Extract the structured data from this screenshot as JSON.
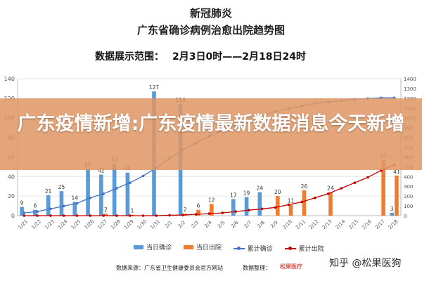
{
  "title_main": "新冠肺炎",
  "title_sub": "广东省确诊病例治愈出院趋势图",
  "range_label": "数据展示范围：",
  "range_value": "2月3日0时——2月18日24时",
  "overlay_text": "广东疫情新增:广东疫情最新数据消息今天新增",
  "colors": {
    "confirmed": "#5b9bd5",
    "discharged": "#ed7d31",
    "cum_confirmed": "#4472c4",
    "cum_discharged": "#c00000",
    "grid": "#e6e6e6",
    "axis_text": "#555555"
  },
  "legend": {
    "daily_confirmed": "当日确诊",
    "daily_discharged": "当日出院",
    "cum_confirmed": "累计确诊",
    "cum_discharged": "累计出院"
  },
  "footer": {
    "source": "数据来源：广东省卫生健康委员会官方网站",
    "compiler": "数据整理：",
    "logo": "松果医疗",
    "watermark": "知乎 @松果医狗"
  },
  "chart_data": {
    "type": "bar",
    "categories": [
      "1/21",
      "1/22",
      "1/23",
      "1/24",
      "1/25",
      "1/26",
      "1/27",
      "1/28",
      "1/29",
      "1/30",
      "1/31",
      "2/1",
      "2/2",
      "2/3",
      "2/4",
      "2/5",
      "2/6",
      "2/7",
      "2/8",
      "2/9",
      "2/10",
      "2/11",
      "2/12",
      "2/13",
      "2/14",
      "2/15",
      "2/16",
      "2/17",
      "2/18"
    ],
    "series": [
      {
        "name": "当日确诊",
        "kind": "bar",
        "values": [
          9,
          6,
          21,
          25,
          14,
          48,
          42,
          53,
          44,
          null,
          127,
          null,
          114,
          null,
          null,
          null,
          17,
          19,
          24,
          null,
          null,
          null,
          null,
          null,
          null,
          null,
          null,
          null,
          3
        ]
      },
      {
        "name": "当日出院",
        "kind": "bar",
        "values": [
          null,
          null,
          null,
          null,
          null,
          null,
          2,
          null,
          1,
          null,
          null,
          null,
          2,
          6,
          12,
          null,
          null,
          null,
          null,
          20,
          11,
          26,
          null,
          24,
          null,
          null,
          null,
          57,
          41
        ]
      },
      {
        "name": "累计确诊",
        "kind": "line"
      },
      {
        "name": "累计出院",
        "kind": "line"
      }
    ],
    "y_left": {
      "range": [
        0,
        140
      ],
      "ticks": [
        0,
        20,
        40,
        60,
        80,
        100,
        120,
        140
      ]
    },
    "y_right": {
      "ticks": [
        1400,
        1300,
        1200,
        1100,
        1000,
        900,
        800,
        700,
        600,
        500,
        400,
        300,
        200,
        100,
        0
      ]
    },
    "cum_confirmed_shape": [
      0.02,
      0.03,
      0.05,
      0.07,
      0.09,
      0.13,
      0.16,
      0.2,
      0.24,
      0.29,
      0.35,
      0.42,
      0.48,
      0.53,
      0.58,
      0.62,
      0.66,
      0.7,
      0.73,
      0.76,
      0.78,
      0.8,
      0.82,
      0.83,
      0.84,
      0.85,
      0.855,
      0.86,
      0.86
    ],
    "cum_discharged_shape": [
      0,
      0,
      0,
      0,
      0,
      0,
      0,
      0,
      0,
      0,
      0,
      0.003,
      0.005,
      0.01,
      0.015,
      0.02,
      0.03,
      0.04,
      0.05,
      0.06,
      0.08,
      0.1,
      0.13,
      0.16,
      0.2,
      0.24,
      0.28,
      0.33,
      0.37
    ],
    "grid": true,
    "legend_position": "bottom"
  }
}
